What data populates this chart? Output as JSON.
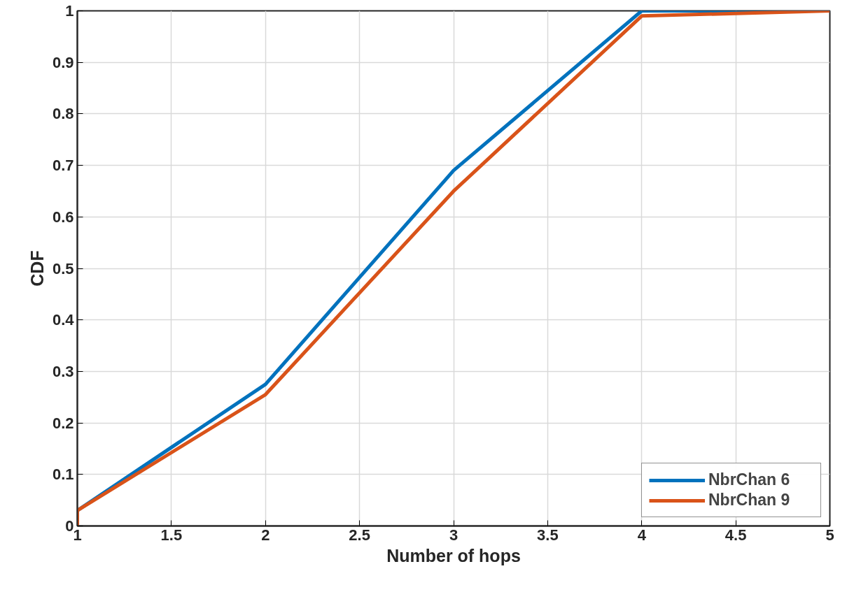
{
  "chart_data": {
    "type": "line",
    "xlabel": "Number of hops",
    "ylabel": "CDF",
    "x": [
      1,
      1,
      2,
      3,
      4,
      5
    ],
    "series": [
      {
        "name": "NbrChan 6",
        "color": "#0072bd",
        "values": [
          0,
          0.03,
          0.275,
          0.69,
          1.0,
          1.0
        ]
      },
      {
        "name": "NbrChan 9",
        "color": "#d95319",
        "values": [
          0,
          0.03,
          0.255,
          0.65,
          0.99,
          1.0
        ]
      }
    ],
    "xlim": [
      1,
      5
    ],
    "ylim": [
      0,
      1
    ],
    "xticks": [
      1,
      1.5,
      2,
      2.5,
      3,
      3.5,
      4,
      4.5,
      5
    ],
    "yticks": [
      0,
      0.1,
      0.2,
      0.3,
      0.4,
      0.5,
      0.6,
      0.7,
      0.8,
      0.9,
      1
    ],
    "grid": true,
    "legend": "bottom right",
    "line_style": "solid",
    "marker": "none"
  }
}
